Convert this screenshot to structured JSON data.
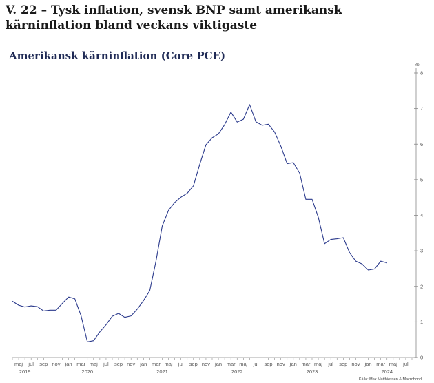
{
  "headline": "V. 22 – Tysk inflation, svensk BNP samt amerikansk kärninflation bland veckans viktigaste",
  "colors": {
    "line": "#2b3a8c",
    "title": "#1f2a55",
    "axis": "#888888"
  },
  "chart_data": {
    "type": "line",
    "title": "Amerikansk kärninflation (Core PCE)",
    "ylabel": "%",
    "ylim": [
      0,
      8
    ],
    "yticks": [
      0,
      1,
      2,
      3,
      4,
      5,
      6,
      7,
      8
    ],
    "grid": false,
    "axis_side": "right",
    "month_ticks": [
      "maj",
      "jul",
      "sep",
      "nov",
      "jan",
      "mar",
      "maj",
      "jul",
      "sep",
      "nov",
      "jan",
      "mar",
      "maj",
      "jul",
      "sep",
      "nov",
      "jan",
      "mar",
      "maj",
      "jul",
      "sep",
      "nov",
      "jan",
      "mar",
      "maj",
      "jul",
      "sep",
      "nov",
      "jan",
      "mar",
      "maj",
      "jul"
    ],
    "year_labels": [
      {
        "label": "2019",
        "month_index": 2
      },
      {
        "label": "2020",
        "month_index": 12
      },
      {
        "label": "2021",
        "month_index": 24
      },
      {
        "label": "2022",
        "month_index": 36
      },
      {
        "label": "2023",
        "month_index": 48
      },
      {
        "label": "2024",
        "month_index": 60
      }
    ],
    "source": "Källa: Max Matthiessen & Macrobond",
    "series": [
      {
        "start": "2019-04",
        "values": [
          1.58,
          1.47,
          1.42,
          1.45,
          1.43,
          1.31,
          1.33,
          1.33,
          1.52,
          1.7,
          1.65,
          1.17,
          0.44,
          0.47,
          0.72,
          0.92,
          1.16,
          1.24,
          1.13,
          1.17,
          1.36,
          1.6,
          1.88,
          2.71,
          3.7,
          4.14,
          4.36,
          4.51,
          4.62,
          4.83,
          5.43,
          5.98,
          6.18,
          6.29,
          6.55,
          6.9,
          6.62,
          6.7,
          7.11,
          6.63,
          6.53,
          6.56,
          6.34,
          5.94,
          5.45,
          5.48,
          5.19,
          4.45,
          4.45,
          3.94,
          3.2,
          3.32,
          3.34,
          3.37,
          2.95,
          2.71,
          2.63,
          2.46,
          2.49,
          2.71,
          2.66
        ]
      }
    ]
  }
}
